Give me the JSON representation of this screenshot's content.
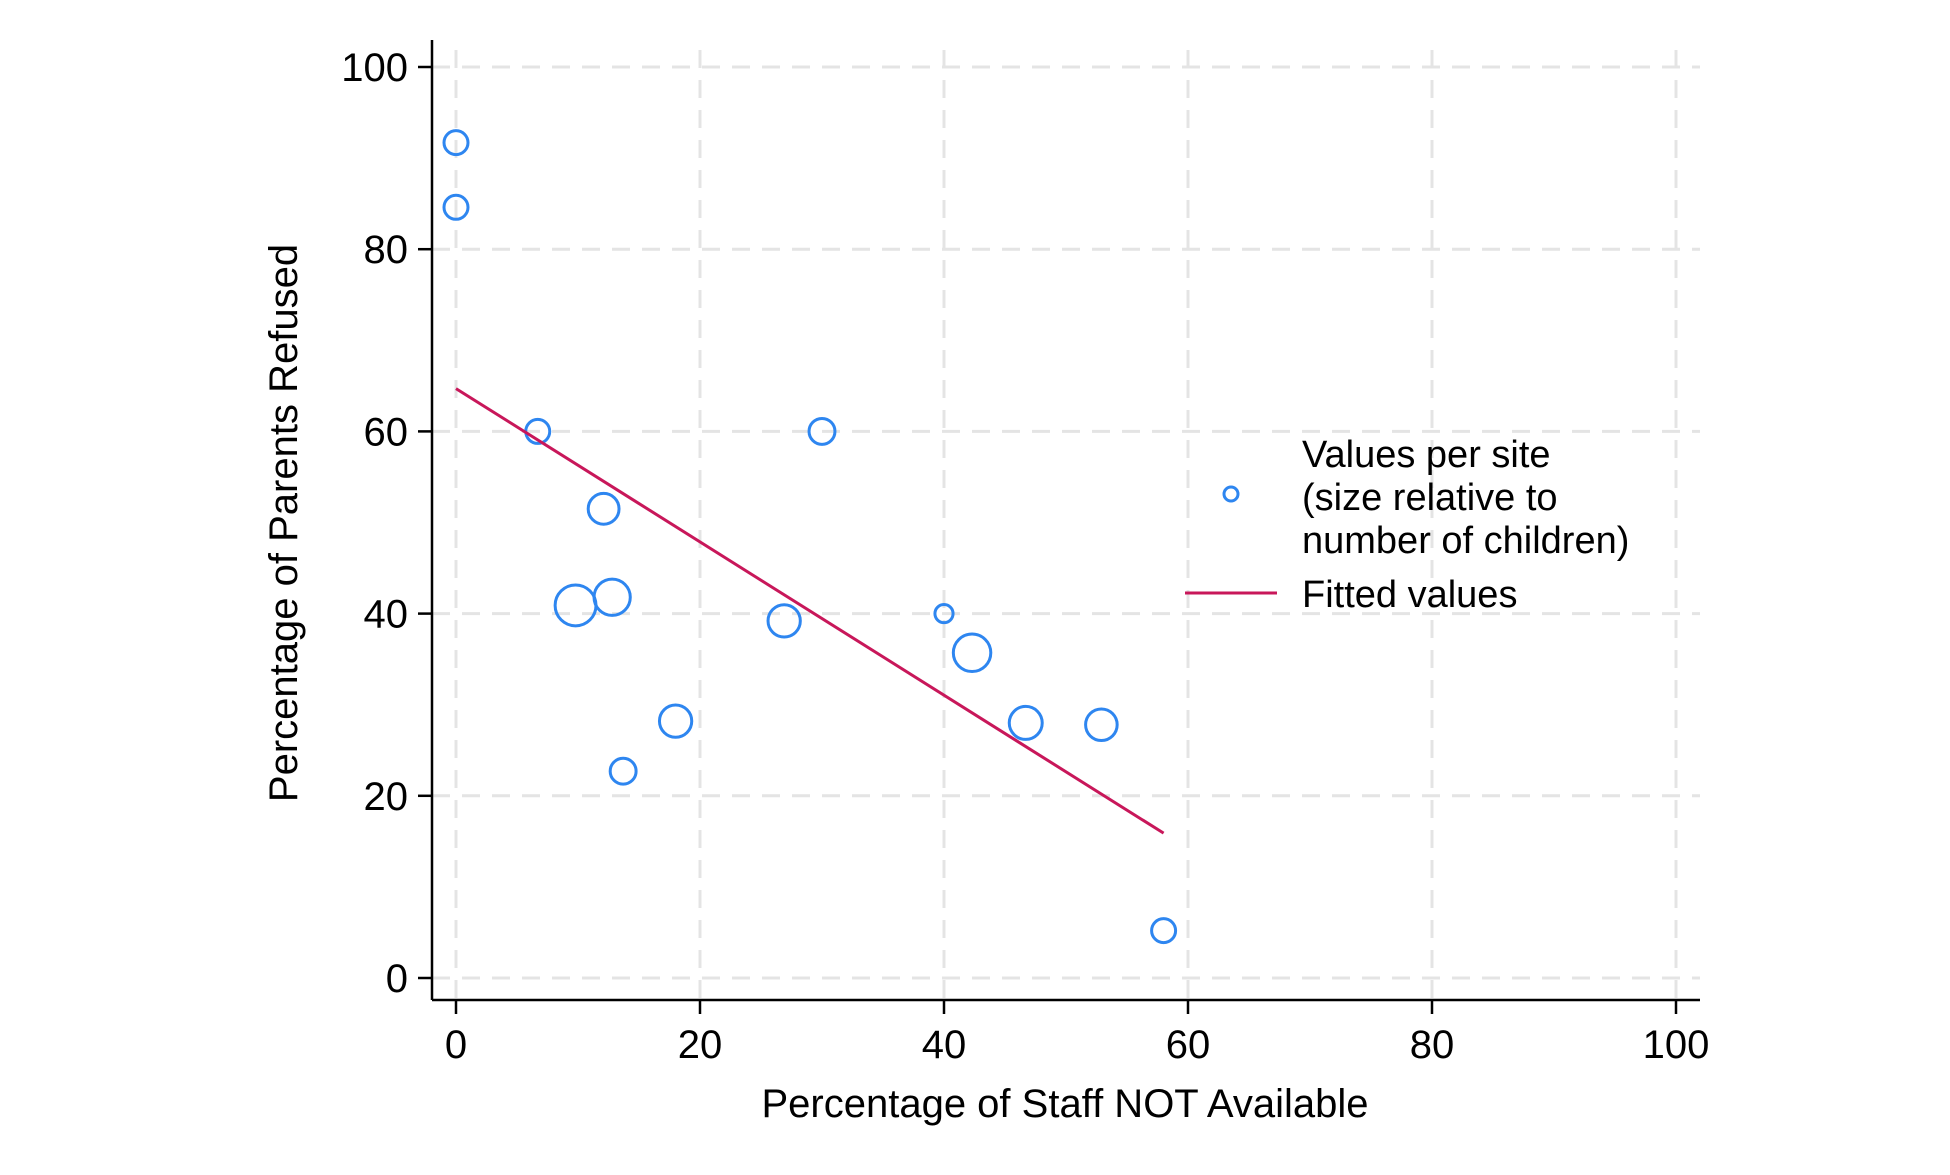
{
  "chart_data": {
    "type": "scatter",
    "xlabel": "Percentage of Staff NOT Available",
    "ylabel": "Percentage of Parents Refused",
    "xlim": [
      0,
      100
    ],
    "ylim": [
      0,
      100
    ],
    "xticks": [
      0,
      20,
      40,
      60,
      80,
      100
    ],
    "yticks": [
      0,
      20,
      40,
      60,
      80,
      100
    ],
    "xtick_labels": [
      "0",
      "20",
      "40",
      "60",
      "80",
      "100"
    ],
    "ytick_labels": [
      "0",
      "20",
      "40",
      "60",
      "80",
      "100"
    ],
    "grid": true,
    "legend_position": "right",
    "points": [
      {
        "x": 0,
        "y": 91.7,
        "size": 1
      },
      {
        "x": 0,
        "y": 84.6,
        "size": 1
      },
      {
        "x": 6.7,
        "y": 60,
        "size": 1
      },
      {
        "x": 30,
        "y": 60,
        "size": 1.2
      },
      {
        "x": 12.1,
        "y": 51.5,
        "size": 1.8
      },
      {
        "x": 9.8,
        "y": 40.9,
        "size": 3.4
      },
      {
        "x": 12.8,
        "y": 41.8,
        "size": 2.6
      },
      {
        "x": 26.9,
        "y": 39.2,
        "size": 2.0
      },
      {
        "x": 40,
        "y": 40,
        "size": 0.5
      },
      {
        "x": 42.3,
        "y": 35.7,
        "size": 2.8
      },
      {
        "x": 18,
        "y": 28.2,
        "size": 2.0
      },
      {
        "x": 46.7,
        "y": 28,
        "size": 2.1
      },
      {
        "x": 52.9,
        "y": 27.8,
        "size": 1.9
      },
      {
        "x": 13.7,
        "y": 22.7,
        "size": 1.2
      },
      {
        "x": 58,
        "y": 5.2,
        "size": 1.0
      }
    ],
    "fitted_line": {
      "x": [
        0,
        58
      ],
      "y": [
        64.7,
        15.9
      ]
    },
    "legend": {
      "scatter_label_lines": [
        "Values per site",
        "(size relative to",
        "number of children)"
      ],
      "line_label": "Fitted values"
    },
    "colors": {
      "markers": "#2e86f0",
      "fitted_line": "#c8175a",
      "grid": "#e4e4e4",
      "axis": "#000000"
    }
  }
}
